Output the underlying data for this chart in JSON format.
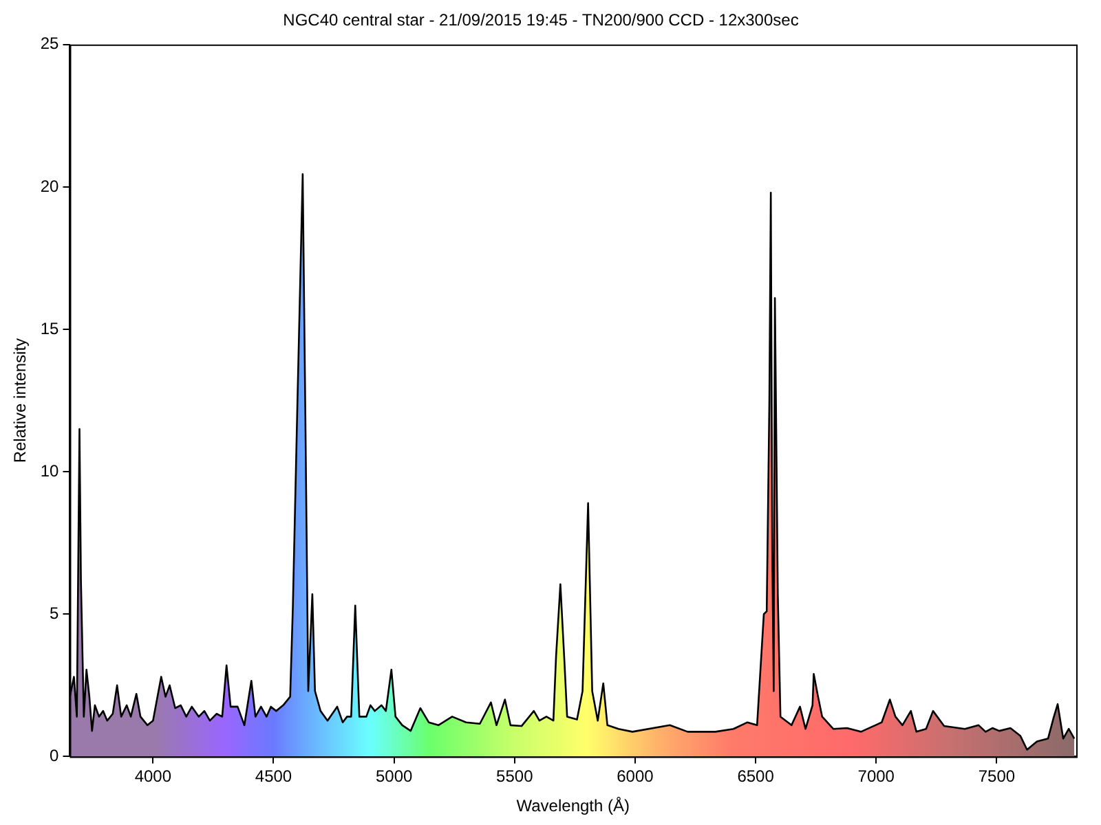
{
  "chart_data": {
    "type": "area",
    "title": "NGC40 central star - 21/09/2015 19:45 - TN200/900 CCD - 12x300sec",
    "xlabel": "Wavelength (Å)",
    "ylabel": "Relative intensity",
    "xlim": [
      3655,
      7830
    ],
    "xticks": [
      4000,
      4500,
      5000,
      5500,
      6000,
      6500,
      7000,
      7500
    ],
    "ylim": [
      0,
      25
    ],
    "yticks": [
      0,
      5,
      10,
      15,
      20,
      25
    ],
    "grid": false,
    "legend": false,
    "series": [
      {
        "color": "#000000",
        "x": [
          3655,
          3672,
          3684,
          3695,
          3701,
          3713,
          3724,
          3736,
          3747,
          3759,
          3776,
          3793,
          3810,
          3833,
          3851,
          3868,
          3891,
          3908,
          3931,
          3948,
          3977,
          4000,
          4034,
          4052,
          4069,
          4092,
          4115,
          4138,
          4161,
          4190,
          4213,
          4236,
          4264,
          4287,
          4305,
          4322,
          4351,
          4379,
          4408,
          4425,
          4448,
          4471,
          4489,
          4511,
          4540,
          4569,
          4580,
          4598,
          4621,
          4632,
          4644,
          4661,
          4672,
          4695,
          4724,
          4764,
          4787,
          4805,
          4822,
          4839,
          4856,
          4885,
          4902,
          4920,
          4948,
          4966,
          4989,
          5006,
          5034,
          5069,
          5109,
          5144,
          5184,
          5241,
          5299,
          5356,
          5402,
          5425,
          5460,
          5483,
          5529,
          5580,
          5603,
          5632,
          5661,
          5672,
          5690,
          5707,
          5718,
          5759,
          5782,
          5805,
          5822,
          5845,
          5868,
          5885,
          5931,
          5989,
          6144,
          6218,
          6333,
          6408,
          6466,
          6506,
          6534,
          6546,
          6557,
          6563,
          6569,
          6575,
          6580,
          6592,
          6603,
          6649,
          6684,
          6707,
          6736,
          6741,
          6759,
          6776,
          6822,
          6879,
          6937,
          7023,
          7057,
          7080,
          7109,
          7144,
          7167,
          7207,
          7236,
          7282,
          7368,
          7425,
          7454,
          7483,
          7511,
          7557,
          7598,
          7626,
          7667,
          7713,
          7736,
          7753,
          7776,
          7799,
          7822
        ],
        "values": [
          2.1,
          2.8,
          1.4,
          11.5,
          6.2,
          1.4,
          3.05,
          2.1,
          0.9,
          1.8,
          1.4,
          1.6,
          1.26,
          1.5,
          2.5,
          1.4,
          1.8,
          1.4,
          2.2,
          1.4,
          1.1,
          1.26,
          2.8,
          2.1,
          2.5,
          1.7,
          1.8,
          1.4,
          1.75,
          1.4,
          1.6,
          1.26,
          1.5,
          1.4,
          3.2,
          1.75,
          1.75,
          1.1,
          2.66,
          1.4,
          1.75,
          1.4,
          1.75,
          1.6,
          1.8,
          2.1,
          5.2,
          12,
          20.45,
          12,
          2.3,
          5.7,
          2.3,
          1.6,
          1.26,
          1.75,
          1.2,
          1.4,
          1.4,
          5.3,
          1.4,
          1.4,
          1.8,
          1.6,
          1.8,
          1.6,
          3.05,
          1.4,
          1.1,
          0.9,
          1.7,
          1.2,
          1.1,
          1.4,
          1.2,
          1.15,
          1.9,
          1.1,
          2.0,
          1.1,
          1.07,
          1.6,
          1.26,
          1.4,
          1.26,
          3.5,
          6.05,
          3.3,
          1.4,
          1.3,
          2.3,
          8.9,
          2.3,
          1.26,
          2.57,
          1.1,
          0.97,
          0.87,
          1.1,
          0.87,
          0.87,
          0.97,
          1.2,
          1.1,
          5.0,
          5.1,
          12.5,
          19.8,
          7.2,
          2.3,
          16.1,
          5.7,
          1.4,
          1.1,
          1.75,
          0.97,
          1.8,
          2.9,
          2.1,
          1.4,
          0.97,
          1.0,
          0.87,
          1.2,
          2.0,
          1.4,
          1.1,
          1.6,
          0.87,
          0.97,
          1.6,
          1.07,
          0.97,
          1.1,
          0.87,
          1.0,
          0.9,
          1.0,
          0.73,
          0.24,
          0.53,
          0.63,
          1.36,
          1.84,
          0.63,
          0.97,
          0.63
        ]
      }
    ]
  }
}
